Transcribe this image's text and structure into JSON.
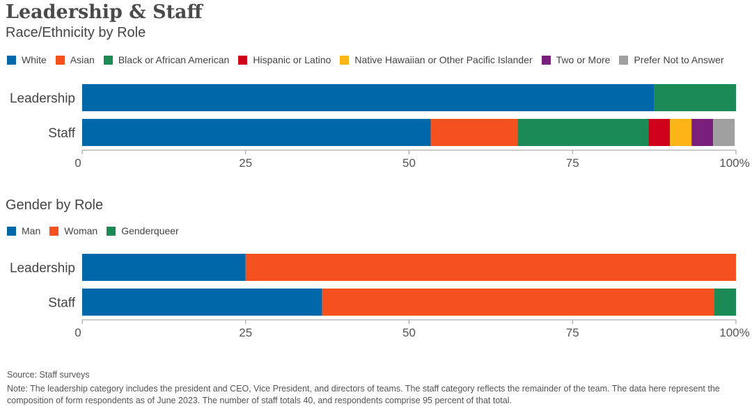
{
  "header": {
    "title": "Leadership & Staff"
  },
  "chart_data": [
    {
      "type": "bar",
      "orientation": "horizontal",
      "stacked": true,
      "subtitle": "Race/Ethnicity by Role",
      "categories": [
        "Leadership",
        "Staff"
      ],
      "series": [
        {
          "name": "White",
          "color": "#0068a8",
          "values": [
            87.5,
            53.3
          ]
        },
        {
          "name": "Asian",
          "color": "#f4511e",
          "values": [
            0,
            13.3
          ]
        },
        {
          "name": "Black or African American",
          "color": "#1b8a55",
          "values": [
            12.5,
            20.0
          ]
        },
        {
          "name": "Hispanic or Latino",
          "color": "#d0021b",
          "values": [
            0,
            3.3
          ]
        },
        {
          "name": "Native Hawaiian or Other Pacific Islander",
          "color": "#fdb515",
          "values": [
            0,
            3.3
          ]
        },
        {
          "name": "Two or More",
          "color": "#7b1f7d",
          "values": [
            0,
            3.3
          ]
        },
        {
          "name": "Prefer Not to Answer",
          "color": "#a0a0a0",
          "values": [
            0,
            3.3
          ]
        }
      ],
      "xlim": [
        0,
        100
      ],
      "ticks": [
        "0",
        "25",
        "50",
        "75",
        "100%"
      ],
      "legend_position": "top-left",
      "grid": false
    },
    {
      "type": "bar",
      "orientation": "horizontal",
      "stacked": true,
      "subtitle": "Gender by Role",
      "categories": [
        "Leadership",
        "Staff"
      ],
      "series": [
        {
          "name": "Man",
          "color": "#0068a8",
          "values": [
            25.0,
            36.7
          ]
        },
        {
          "name": "Woman",
          "color": "#f4511e",
          "values": [
            75.0,
            60.0
          ]
        },
        {
          "name": "Genderqueer",
          "color": "#1b8a55",
          "values": [
            0,
            3.3
          ]
        }
      ],
      "xlim": [
        0,
        100
      ],
      "ticks": [
        "0",
        "25",
        "50",
        "75",
        "100%"
      ],
      "legend_position": "top-left",
      "grid": false
    }
  ],
  "footer": {
    "source": "Source: Staff surveys",
    "note": "Note: The leadership category includes the president and CEO, Vice President, and directors of teams. The staff category reflects the remainder of the team. The data here represent the composition of form respondents as of June 2023. The number of staff totals 40, and respondents comprise 95 percent of that total."
  }
}
